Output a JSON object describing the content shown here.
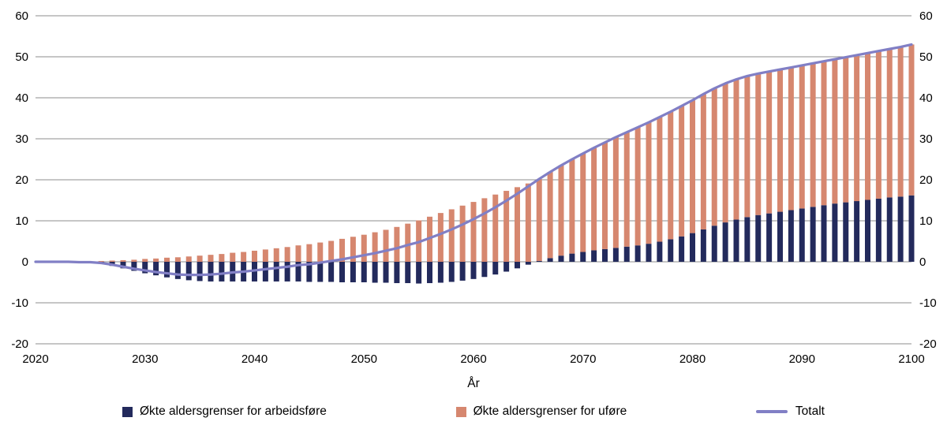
{
  "chart_data": {
    "type": "bar",
    "subtype": "stacked-bars-with-line",
    "title": "",
    "xlabel": "År",
    "ylabel": "",
    "ylim": [
      -20,
      60
    ],
    "grid": true,
    "grid_color": "#8c8c8c",
    "text_color": "#000000",
    "legend_position": "bottom",
    "y_ticks": [
      -20,
      -10,
      0,
      10,
      20,
      30,
      40,
      50,
      60
    ],
    "x_ticks": [
      2020,
      2030,
      2040,
      2050,
      2060,
      2070,
      2080,
      2090,
      2100
    ],
    "x": [
      2020,
      2021,
      2022,
      2023,
      2024,
      2025,
      2026,
      2027,
      2028,
      2029,
      2030,
      2031,
      2032,
      2033,
      2034,
      2035,
      2036,
      2037,
      2038,
      2039,
      2040,
      2041,
      2042,
      2043,
      2044,
      2045,
      2046,
      2047,
      2048,
      2049,
      2050,
      2051,
      2052,
      2053,
      2054,
      2055,
      2056,
      2057,
      2058,
      2059,
      2060,
      2061,
      2062,
      2063,
      2064,
      2065,
      2066,
      2067,
      2068,
      2069,
      2070,
      2071,
      2072,
      2073,
      2074,
      2075,
      2076,
      2077,
      2078,
      2079,
      2080,
      2081,
      2082,
      2083,
      2084,
      2085,
      2086,
      2087,
      2088,
      2089,
      2090,
      2091,
      2092,
      2093,
      2094,
      2095,
      2096,
      2097,
      2098,
      2099,
      2100
    ],
    "series": [
      {
        "name": "Økte aldersgrenser for arbeidsføre",
        "type": "bar",
        "color": "#232a5c",
        "values": [
          0,
          0,
          0,
          0,
          -0.1,
          -0.2,
          -0.5,
          -1,
          -1.6,
          -2.2,
          -2.8,
          -3.3,
          -3.8,
          -4.2,
          -4.5,
          -4.7,
          -4.8,
          -4.8,
          -4.8,
          -4.8,
          -4.8,
          -4.8,
          -4.8,
          -4.8,
          -4.8,
          -4.9,
          -4.9,
          -4.9,
          -5,
          -5,
          -5,
          -5.1,
          -5.1,
          -5.2,
          -5.2,
          -5.3,
          -5.2,
          -5.1,
          -4.9,
          -4.6,
          -4.2,
          -3.7,
          -3.1,
          -2.4,
          -1.6,
          -0.7,
          0.2,
          0.9,
          1.5,
          2,
          2.4,
          2.8,
          3.1,
          3.4,
          3.7,
          4,
          4.4,
          4.9,
          5.5,
          6.2,
          7,
          7.9,
          8.8,
          9.6,
          10.3,
          10.9,
          11.4,
          11.8,
          12.2,
          12.6,
          13,
          13.4,
          13.8,
          14.2,
          14.5,
          14.8,
          15.1,
          15.4,
          15.7,
          15.9,
          16.2
        ]
      },
      {
        "name": "Økte aldersgrenser for uføre",
        "type": "bar",
        "color": "#d6876f",
        "values": [
          0,
          0,
          0,
          0,
          0,
          0.1,
          0.2,
          0.3,
          0.4,
          0.5,
          0.7,
          0.8,
          1,
          1.1,
          1.3,
          1.5,
          1.7,
          1.9,
          2.2,
          2.4,
          2.7,
          3,
          3.3,
          3.6,
          4,
          4.3,
          4.7,
          5.1,
          5.6,
          6.1,
          6.6,
          7.2,
          7.8,
          8.5,
          9.3,
          10.1,
          11,
          11.9,
          12.8,
          13.7,
          14.6,
          15.5,
          16.4,
          17.3,
          18.2,
          19.1,
          20,
          21,
          22,
          23,
          24,
          25,
          26,
          27,
          27.9,
          28.8,
          29.6,
          30.4,
          31.1,
          31.8,
          32.4,
          33,
          33.5,
          33.9,
          34.2,
          34.4,
          34.5,
          34.6,
          34.7,
          34.8,
          34.9,
          35,
          35.1,
          35.2,
          35.4,
          35.6,
          35.8,
          36,
          36.2,
          36.5,
          36.8
        ]
      },
      {
        "name": "Totalt",
        "type": "line",
        "color": "#817fc5",
        "values": [
          0,
          0,
          0,
          0,
          -0.1,
          -0.1,
          -0.3,
          -0.7,
          -1.2,
          -1.7,
          -2.1,
          -2.5,
          -2.8,
          -3.1,
          -3.2,
          -3.2,
          -3.1,
          -2.9,
          -2.6,
          -2.4,
          -2.1,
          -1.8,
          -1.5,
          -1.2,
          -0.8,
          -0.6,
          -0.2,
          0.2,
          0.6,
          1.1,
          1.6,
          2.1,
          2.7,
          3.3,
          4.1,
          4.8,
          5.8,
          6.8,
          7.9,
          9.1,
          10.4,
          11.8,
          13.3,
          14.9,
          16.6,
          18.4,
          20.2,
          21.9,
          23.5,
          25,
          26.4,
          27.8,
          29.1,
          30.4,
          31.6,
          32.8,
          34,
          35.3,
          36.6,
          38,
          39.4,
          40.9,
          42.3,
          43.5,
          44.5,
          45.3,
          45.9,
          46.4,
          46.9,
          47.4,
          47.9,
          48.4,
          48.9,
          49.4,
          49.9,
          50.4,
          50.9,
          51.4,
          51.9,
          52.4,
          53
        ]
      }
    ]
  }
}
